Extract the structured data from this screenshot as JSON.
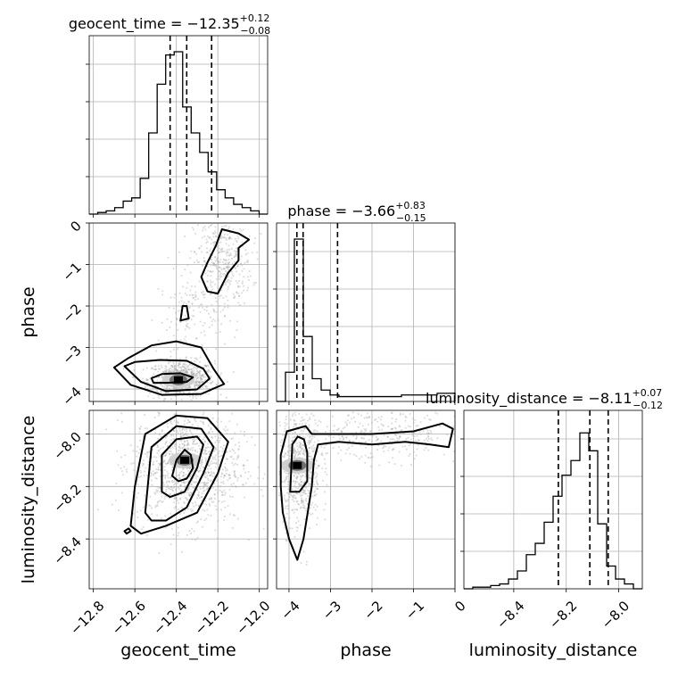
{
  "chart_data": {
    "type": "corner",
    "parameters": [
      {
        "key": "geocent_time",
        "label": "geocent_time",
        "range": [
          -12.82,
          -11.96
        ],
        "ticks": [
          -12.8,
          -12.6,
          -12.4,
          -12.2,
          -12.0
        ],
        "tick_labels": [
          "−12.8",
          "−12.6",
          "−12.4",
          "−12.2",
          "−12.0"
        ],
        "median": -12.35,
        "q_low": -12.43,
        "q_high": -12.23,
        "title_main": "geocent_time = −12.35",
        "title_sup": "+0.12",
        "title_sub": "−0.08"
      },
      {
        "key": "phase",
        "label": "phase",
        "range": [
          -4.3,
          0
        ],
        "ticks": [
          -4,
          -3,
          -2,
          -1,
          0
        ],
        "tick_labels": [
          "−4",
          "−3",
          "−2",
          "−1",
          "0"
        ],
        "median": -3.66,
        "q_low": -3.81,
        "q_high": -2.83,
        "title_main": "phase = −3.66",
        "title_sup": "+0.83",
        "title_sub": "−0.15"
      },
      {
        "key": "luminosity_distance",
        "label": "luminosity_distance",
        "range": [
          -8.59,
          -7.91
        ],
        "ticks": [
          -8.4,
          -8.2,
          -8.0
        ],
        "tick_labels": [
          "−8.4",
          "−8.2",
          "−8.0"
        ],
        "median": -8.11,
        "q_low": -8.23,
        "q_high": -8.04,
        "title_main": "luminosity_distance = −8.11",
        "title_sup": "+0.07",
        "title_sub": "−0.12"
      }
    ],
    "histograms": {
      "geocent_time": [
        0.0,
        0.01,
        0.02,
        0.04,
        0.08,
        0.1,
        0.22,
        0.5,
        0.8,
        0.98,
        1.0,
        0.66,
        0.5,
        0.38,
        0.26,
        0.15,
        0.1,
        0.06,
        0.04,
        0.02,
        0.0
      ],
      "phase": [
        0.0,
        0.18,
        1.0,
        0.4,
        0.14,
        0.07,
        0.04,
        0.03,
        0.03,
        0.03,
        0.03,
        0.03,
        0.03,
        0.03,
        0.04,
        0.04,
        0.04,
        0.04,
        0.05,
        0.05
      ],
      "luminosity_distance": [
        0.0,
        0.01,
        0.01,
        0.02,
        0.03,
        0.06,
        0.11,
        0.21,
        0.28,
        0.41,
        0.57,
        0.7,
        0.79,
        0.96,
        0.85,
        0.4,
        0.14,
        0.06,
        0.03,
        0.0
      ]
    },
    "contours": {
      "phase_vs_geocent_time": [
        [
          [
            -12.51,
            -3.85
          ],
          [
            -12.45,
            -3.85
          ],
          [
            -12.35,
            -3.83
          ],
          [
            -12.32,
            -3.72
          ],
          [
            -12.38,
            -3.62
          ],
          [
            -12.47,
            -3.64
          ],
          [
            -12.52,
            -3.74
          ]
        ],
        [
          [
            -12.65,
            -3.45
          ],
          [
            -12.57,
            -3.83
          ],
          [
            -12.45,
            -4.05
          ],
          [
            -12.3,
            -4.01
          ],
          [
            -12.24,
            -3.75
          ],
          [
            -12.27,
            -3.51
          ],
          [
            -12.35,
            -3.32
          ],
          [
            -12.48,
            -3.3
          ],
          [
            -12.6,
            -3.35
          ]
        ],
        [
          [
            -12.7,
            -3.48
          ],
          [
            -12.62,
            -3.9
          ],
          [
            -12.47,
            -4.14
          ],
          [
            -12.28,
            -4.12
          ],
          [
            -12.17,
            -3.88
          ],
          [
            -12.22,
            -3.52
          ],
          [
            -12.28,
            -3.0
          ],
          [
            -12.4,
            -2.85
          ],
          [
            -12.52,
            -2.95
          ],
          [
            -12.63,
            -3.25
          ]
        ],
        [
          [
            -12.38,
            -2.35
          ],
          [
            -12.37,
            -2.0
          ],
          [
            -12.35,
            -2.0
          ],
          [
            -12.34,
            -2.3
          ]
        ],
        [
          [
            -12.25,
            -0.95
          ],
          [
            -12.21,
            -0.55
          ],
          [
            -12.18,
            -0.15
          ],
          [
            -12.1,
            -0.25
          ],
          [
            -12.05,
            -0.4
          ],
          [
            -12.1,
            -0.6
          ],
          [
            -12.1,
            -0.9
          ],
          [
            -12.15,
            -1.2
          ],
          [
            -12.2,
            -1.7
          ],
          [
            -12.25,
            -1.65
          ],
          [
            -12.28,
            -1.3
          ]
        ]
      ],
      "luminosity_distance_vs_geocent_time": [
        [
          [
            -12.42,
            -8.16
          ],
          [
            -12.4,
            -8.1
          ],
          [
            -12.36,
            -8.06
          ],
          [
            -12.33,
            -8.08
          ],
          [
            -12.32,
            -8.13
          ],
          [
            -12.35,
            -8.17
          ],
          [
            -12.39,
            -8.18
          ]
        ],
        [
          [
            -12.47,
            -8.22
          ],
          [
            -12.47,
            -8.08
          ],
          [
            -12.4,
            -8.02
          ],
          [
            -12.3,
            -8.01
          ],
          [
            -12.27,
            -8.04
          ],
          [
            -12.3,
            -8.13
          ],
          [
            -12.36,
            -8.22
          ],
          [
            -12.43,
            -8.24
          ]
        ],
        [
          [
            -12.55,
            -8.3
          ],
          [
            -12.52,
            -8.05
          ],
          [
            -12.4,
            -7.97
          ],
          [
            -12.28,
            -7.98
          ],
          [
            -12.22,
            -8.05
          ],
          [
            -12.27,
            -8.15
          ],
          [
            -12.35,
            -8.28
          ],
          [
            -12.45,
            -8.33
          ],
          [
            -12.52,
            -8.33
          ]
        ],
        [
          [
            -12.62,
            -8.35
          ],
          [
            -12.6,
            -8.2
          ],
          [
            -12.55,
            -8.0
          ],
          [
            -12.4,
            -7.93
          ],
          [
            -12.25,
            -7.94
          ],
          [
            -12.15,
            -8.03
          ],
          [
            -12.2,
            -8.15
          ],
          [
            -12.3,
            -8.3
          ],
          [
            -12.45,
            -8.35
          ],
          [
            -12.57,
            -8.38
          ]
        ],
        [
          [
            -12.64,
            -8.38
          ],
          [
            -12.62,
            -8.37
          ],
          [
            -12.63,
            -8.36
          ],
          [
            -12.65,
            -8.37
          ]
        ]
      ],
      "luminosity_distance_vs_phase": [
        [
          [
            -3.97,
            -8.22
          ],
          [
            -3.92,
            -8.04
          ],
          [
            -3.79,
            -8.01
          ],
          [
            -3.64,
            -8.02
          ],
          [
            -3.56,
            -8.07
          ],
          [
            -3.56,
            -8.18
          ],
          [
            -3.75,
            -8.22
          ]
        ],
        [
          [
            -4.2,
            -8.08
          ],
          [
            -4.05,
            -7.99
          ],
          [
            -3.6,
            -7.97
          ],
          [
            -3.45,
            -8.0
          ],
          [
            -3.3,
            -8.0
          ],
          [
            -2.0,
            -8.0
          ],
          [
            -1.0,
            -7.99
          ],
          [
            -0.3,
            -7.96
          ],
          [
            -0.05,
            -7.98
          ],
          [
            -0.15,
            -8.05
          ],
          [
            -0.6,
            -8.04
          ],
          [
            -1.2,
            -8.03
          ],
          [
            -2.0,
            -8.04
          ],
          [
            -2.8,
            -8.03
          ],
          [
            -3.3,
            -8.04
          ],
          [
            -3.4,
            -8.1
          ],
          [
            -3.45,
            -8.2
          ],
          [
            -3.55,
            -8.3
          ],
          [
            -3.65,
            -8.4
          ],
          [
            -3.8,
            -8.48
          ],
          [
            -4.0,
            -8.4
          ],
          [
            -4.15,
            -8.3
          ],
          [
            -4.2,
            -8.2
          ]
        ]
      ]
    },
    "density_peaks": {
      "phase_vs_geocent_time": [
        -12.39,
        -3.78
      ],
      "luminosity_distance_vs_geocent_time": [
        -12.36,
        -8.1
      ],
      "luminosity_distance_vs_phase": [
        -3.8,
        -8.12
      ]
    }
  }
}
